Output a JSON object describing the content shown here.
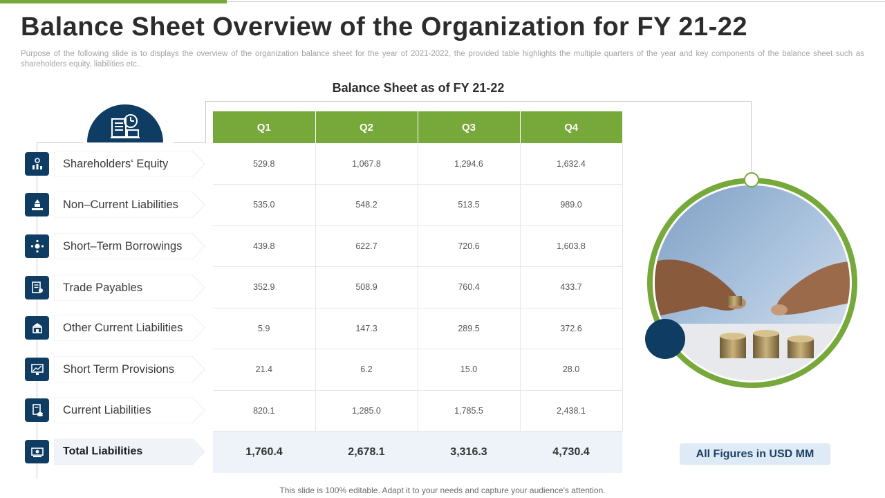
{
  "slide": {
    "title": "Balance Sheet Overview of the Organization for FY 21-22",
    "subtitle": "Purpose of the following slide is to displays the overview  of the organization balance sheet for the year of 2021-2022, the provided  table highlights the multiple quarters of the year and key components of the balance sheet such as shareholders  equity, liabilities etc..",
    "table_title": "Balance Sheet as of FY 21-22",
    "figures_note": "All Figures in USD MM",
    "footer": "This slide is 100% editable. Adapt it to your needs and capture your audience's attention."
  },
  "colors": {
    "accent_green": "#76a83a",
    "navy": "#0e3c63",
    "total_row_bg": "#edf3f9",
    "note_bg": "#deebf7"
  },
  "table": {
    "columns": [
      "Q1",
      "Q2",
      "Q3",
      "Q4"
    ],
    "rows": [
      {
        "label": "Shareholders‘ Equity",
        "icon": "equity-chart-icon",
        "values": [
          "529.8",
          "1,067.8",
          "1,294.6",
          "1,632.4"
        ]
      },
      {
        "label": "Non–Current Liabilities",
        "icon": "money-hand-icon",
        "values": [
          "535.0",
          "548.2",
          "513.5",
          "989.0"
        ]
      },
      {
        "label": "Short–Term Borrowings",
        "icon": "network-gear-icon",
        "values": [
          "439.8",
          "622.7",
          "720.6",
          "1,603.8"
        ]
      },
      {
        "label": "Trade Payables",
        "icon": "invoice-icon",
        "values": [
          "352.9",
          "508.9",
          "760.4",
          "433.7"
        ]
      },
      {
        "label": "Other Current Liabilities",
        "icon": "building-icon",
        "values": [
          "5.9",
          "147.3",
          "289.5",
          "372.6"
        ]
      },
      {
        "label": "Short Term Provisions",
        "icon": "monitor-chart-icon",
        "values": [
          "21.4",
          "6.2",
          "15.0",
          "28.0"
        ]
      },
      {
        "label": "Current Liabilities",
        "icon": "document-coins-icon",
        "values": [
          "820.1",
          "1,285.0",
          "1,785.5",
          "2,438.1"
        ]
      }
    ],
    "total": {
      "label": "Total Liabilities",
      "icon": "cash-icon",
      "values": [
        "1,760.4",
        "2,678.1",
        "3,316.3",
        "4,730.4"
      ]
    }
  },
  "images": {
    "header_icon": "accounting-icon",
    "photo": "coins-stack-photo"
  }
}
